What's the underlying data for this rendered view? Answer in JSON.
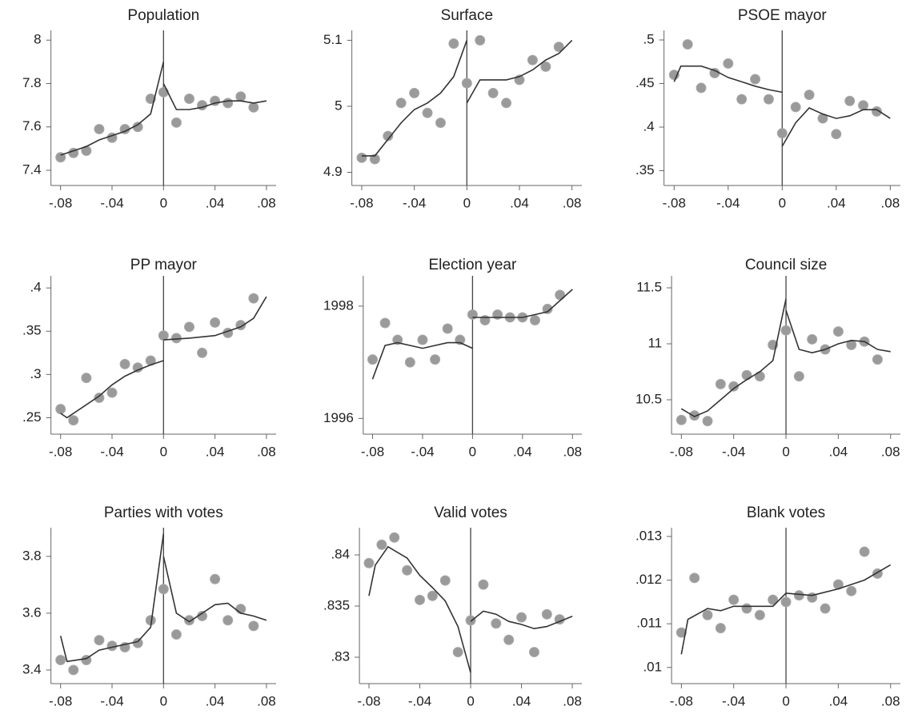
{
  "chart_data": [
    {
      "type": "scatter",
      "title": "Population",
      "points": {
        "color": "#9a9a9a",
        "x": [
          -0.08,
          -0.07,
          -0.06,
          -0.05,
          -0.04,
          -0.03,
          -0.02,
          -0.01,
          0,
          0.01,
          0.02,
          0.03,
          0.04,
          0.05,
          0.06,
          0.07
        ],
        "values": [
          7.46,
          7.48,
          7.49,
          7.59,
          7.55,
          7.59,
          7.6,
          7.73,
          7.76,
          7.62,
          7.73,
          7.7,
          7.72,
          7.71,
          7.74,
          7.69
        ]
      },
      "line": {
        "color": "#333333",
        "x": [
          -0.08,
          -0.07,
          -0.06,
          -0.05,
          -0.04,
          -0.03,
          -0.02,
          -0.01,
          0,
          null,
          0,
          0.01,
          0.02,
          0.03,
          0.04,
          0.05,
          0.06,
          0.07,
          0.08
        ],
        "values": [
          7.47,
          7.49,
          7.51,
          7.54,
          7.56,
          7.58,
          7.61,
          7.66,
          7.9,
          null,
          7.8,
          7.68,
          7.68,
          7.69,
          7.71,
          7.72,
          7.72,
          7.71,
          7.72
        ]
      },
      "xlim": [
        -0.0875,
        0.0875
      ],
      "xticks": [
        {
          "value": -0.08,
          "label": "-.08"
        },
        {
          "value": -0.04,
          "label": "-.04"
        },
        0,
        {
          "value": 0.04,
          "label": ".04"
        },
        {
          "value": 0.08,
          "label": ".08"
        }
      ],
      "ylim": [
        7.33,
        8.045
      ],
      "yticks": [
        7.4,
        7.6,
        7.8,
        8
      ]
    },
    {
      "type": "scatter",
      "title": "Surface",
      "points": {
        "color": "#9a9a9a",
        "x": [
          -0.08,
          -0.07,
          -0.06,
          -0.05,
          -0.04,
          -0.03,
          -0.02,
          -0.01,
          0,
          0.01,
          0.02,
          0.03,
          0.04,
          0.05,
          0.06,
          0.07
        ],
        "values": [
          4.922,
          4.92,
          4.955,
          5.005,
          5.02,
          4.99,
          4.975,
          5.095,
          5.035,
          5.1,
          5.02,
          5.005,
          5.04,
          5.07,
          5.06,
          5.09
        ]
      },
      "line": {
        "color": "#333333",
        "x": [
          -0.08,
          -0.07,
          -0.06,
          -0.05,
          -0.04,
          -0.03,
          -0.02,
          -0.01,
          0,
          null,
          0,
          0.01,
          0.02,
          0.03,
          0.04,
          0.05,
          0.06,
          0.07,
          0.08
        ],
        "values": [
          4.925,
          4.925,
          4.95,
          4.975,
          4.995,
          5.005,
          5.02,
          5.045,
          5.1,
          null,
          5.005,
          5.04,
          5.04,
          5.04,
          5.045,
          5.055,
          5.07,
          5.08,
          5.1
        ]
      },
      "xlim": [
        -0.0875,
        0.0875
      ],
      "xticks": [
        {
          "value": -0.08,
          "label": "-.08"
        },
        {
          "value": -0.04,
          "label": "-.04"
        },
        0,
        {
          "value": 0.04,
          "label": ".04"
        },
        {
          "value": 0.08,
          "label": ".08"
        }
      ],
      "ylim": [
        4.88,
        5.115
      ],
      "yticks": [
        4.9,
        5,
        5.1
      ]
    },
    {
      "type": "scatter",
      "title": "PSOE mayor",
      "points": {
        "color": "#9a9a9a",
        "x": [
          -0.08,
          -0.07,
          -0.06,
          -0.05,
          -0.04,
          -0.03,
          -0.02,
          -0.01,
          0,
          0.01,
          0.02,
          0.03,
          0.04,
          0.05,
          0.06,
          0.07
        ],
        "values": [
          0.46,
          0.495,
          0.445,
          0.462,
          0.473,
          0.432,
          0.455,
          0.432,
          0.393,
          0.423,
          0.437,
          0.41,
          0.392,
          0.43,
          0.425,
          0.418
        ]
      },
      "line": {
        "color": "#333333",
        "x": [
          -0.08,
          -0.075,
          -0.06,
          -0.05,
          -0.04,
          -0.03,
          -0.02,
          -0.01,
          0,
          null,
          0,
          0.01,
          0.02,
          0.03,
          0.04,
          0.05,
          0.06,
          0.07,
          0.08
        ],
        "values": [
          0.452,
          0.47,
          0.47,
          0.465,
          0.457,
          0.452,
          0.447,
          0.443,
          0.44,
          null,
          0.378,
          0.405,
          0.422,
          0.415,
          0.41,
          0.413,
          0.42,
          0.42,
          0.41
        ]
      },
      "xlim": [
        -0.0875,
        0.0875
      ],
      "xticks": [
        {
          "value": -0.08,
          "label": "-.08"
        },
        {
          "value": -0.04,
          "label": "-.04"
        },
        0,
        {
          "value": 0.04,
          "label": ".04"
        },
        {
          "value": 0.08,
          "label": ".08"
        }
      ],
      "ylim": [
        0.333,
        0.511
      ],
      "yticks": [
        {
          "value": 0.35,
          "label": ".35"
        },
        {
          "value": 0.4,
          "label": ".4"
        },
        {
          "value": 0.45,
          "label": ".45"
        },
        {
          "value": 0.5,
          "label": ".5"
        }
      ]
    },
    {
      "type": "scatter",
      "title": "PP mayor",
      "points": {
        "color": "#9a9a9a",
        "x": [
          -0.08,
          -0.07,
          -0.06,
          -0.05,
          -0.04,
          -0.03,
          -0.02,
          -0.01,
          0,
          0.01,
          0.02,
          0.03,
          0.04,
          0.05,
          0.06,
          0.07
        ],
        "values": [
          0.26,
          0.247,
          0.296,
          0.273,
          0.279,
          0.312,
          0.308,
          0.316,
          0.345,
          0.342,
          0.355,
          0.325,
          0.36,
          0.348,
          0.357,
          0.388
        ]
      },
      "line": {
        "color": "#333333",
        "x": [
          -0.08,
          -0.075,
          -0.06,
          -0.05,
          -0.04,
          -0.03,
          -0.02,
          -0.01,
          0,
          null,
          0,
          0.02,
          0.04,
          0.06,
          0.07,
          0.08
        ],
        "values": [
          0.255,
          0.25,
          0.265,
          0.275,
          0.288,
          0.298,
          0.305,
          0.311,
          0.316,
          null,
          0.34,
          0.342,
          0.345,
          0.355,
          0.365,
          0.39
        ]
      },
      "xlim": [
        -0.0875,
        0.0875
      ],
      "xticks": [
        {
          "value": -0.08,
          "label": "-.08"
        },
        {
          "value": -0.04,
          "label": "-.04"
        },
        0,
        {
          "value": 0.04,
          "label": ".04"
        },
        {
          "value": 0.08,
          "label": ".08"
        }
      ],
      "ylim": [
        0.231,
        0.414
      ],
      "yticks": [
        {
          "value": 0.25,
          "label": ".25"
        },
        {
          "value": 0.3,
          "label": ".3"
        },
        {
          "value": 0.35,
          "label": ".35"
        },
        {
          "value": 0.4,
          "label": ".4"
        }
      ]
    },
    {
      "type": "scatter",
      "title": "Election year",
      "points": {
        "color": "#9a9a9a",
        "x": [
          -0.08,
          -0.07,
          -0.06,
          -0.05,
          -0.04,
          -0.03,
          -0.02,
          -0.01,
          0,
          0.01,
          0.02,
          0.03,
          0.04,
          0.05,
          0.06,
          0.07
        ],
        "values": [
          1997.05,
          1997.7,
          1997.4,
          1997.0,
          1997.4,
          1997.05,
          1997.6,
          1997.4,
          1997.85,
          1997.75,
          1997.85,
          1997.8,
          1997.8,
          1997.75,
          1997.95,
          1998.2
        ]
      },
      "line": {
        "color": "#333333",
        "x": [
          -0.08,
          -0.07,
          -0.06,
          -0.04,
          -0.02,
          -0.01,
          0,
          null,
          0,
          0.02,
          0.04,
          0.06,
          0.08
        ],
        "values": [
          1996.7,
          1997.3,
          1997.35,
          1997.25,
          1997.35,
          1997.35,
          1997.25,
          null,
          1997.8,
          1997.8,
          1997.8,
          1997.9,
          1998.3
        ]
      },
      "xlim": [
        -0.0875,
        0.0875
      ],
      "xticks": [
        {
          "value": -0.08,
          "label": "-.08"
        },
        {
          "value": -0.04,
          "label": "-.04"
        },
        0,
        {
          "value": 0.04,
          "label": ".04"
        },
        {
          "value": 0.08,
          "label": ".08"
        }
      ],
      "ylim": [
        1995.72,
        1998.54
      ],
      "yticks": [
        1996,
        1998
      ]
    },
    {
      "type": "scatter",
      "title": "Council size",
      "points": {
        "color": "#9a9a9a",
        "x": [
          -0.08,
          -0.07,
          -0.06,
          -0.05,
          -0.04,
          -0.03,
          -0.02,
          -0.01,
          0,
          0.01,
          0.02,
          0.03,
          0.04,
          0.05,
          0.06,
          0.07
        ],
        "values": [
          10.32,
          10.36,
          10.31,
          10.64,
          10.62,
          10.72,
          10.71,
          10.99,
          11.12,
          10.71,
          11.04,
          10.95,
          11.11,
          10.99,
          11.02,
          10.86
        ]
      },
      "line": {
        "color": "#333333",
        "x": [
          -0.08,
          -0.07,
          -0.06,
          -0.05,
          -0.04,
          -0.03,
          -0.02,
          -0.01,
          0,
          null,
          0,
          0.01,
          0.02,
          0.03,
          0.04,
          0.05,
          0.06,
          0.07,
          0.08
        ],
        "values": [
          10.42,
          10.35,
          10.4,
          10.5,
          10.6,
          10.68,
          10.75,
          10.85,
          11.4,
          null,
          11.3,
          10.95,
          10.92,
          10.95,
          11.0,
          11.03,
          11.02,
          10.95,
          10.93
        ]
      },
      "xlim": [
        -0.0875,
        0.0875
      ],
      "xticks": [
        {
          "value": -0.08,
          "label": "-.08"
        },
        {
          "value": -0.04,
          "label": "-.04"
        },
        0,
        {
          "value": 0.04,
          "label": ".04"
        },
        {
          "value": 0.08,
          "label": ".08"
        }
      ],
      "ylim": [
        10.193,
        11.607
      ],
      "yticks": [
        10.5,
        11,
        11.5
      ]
    },
    {
      "type": "scatter",
      "title": "Parties with votes",
      "points": {
        "color": "#9a9a9a",
        "x": [
          -0.08,
          -0.07,
          -0.06,
          -0.05,
          -0.04,
          -0.03,
          -0.02,
          -0.01,
          0,
          0.01,
          0.02,
          0.03,
          0.04,
          0.05,
          0.06,
          0.07
        ],
        "values": [
          3.435,
          3.4,
          3.435,
          3.505,
          3.485,
          3.48,
          3.495,
          3.575,
          3.685,
          3.525,
          3.575,
          3.59,
          3.72,
          3.575,
          3.615,
          3.555
        ]
      },
      "line": {
        "color": "#333333",
        "x": [
          -0.08,
          -0.075,
          -0.06,
          -0.05,
          -0.04,
          -0.03,
          -0.02,
          -0.01,
          0,
          null,
          0,
          0.01,
          0.02,
          0.03,
          0.04,
          0.05,
          0.06,
          0.07,
          0.08
        ],
        "values": [
          3.52,
          3.43,
          3.44,
          3.47,
          3.48,
          3.49,
          3.5,
          3.55,
          3.88,
          null,
          3.8,
          3.6,
          3.57,
          3.6,
          3.63,
          3.635,
          3.6,
          3.59,
          3.575
        ]
      },
      "xlim": [
        -0.0875,
        0.0875
      ],
      "xticks": [
        {
          "value": -0.08,
          "label": "-.08"
        },
        {
          "value": -0.04,
          "label": "-.04"
        },
        0,
        {
          "value": 0.04,
          "label": ".04"
        },
        {
          "value": 0.08,
          "label": ".08"
        }
      ],
      "ylim": [
        3.352,
        3.901
      ],
      "yticks": [
        3.4,
        3.6,
        3.8
      ]
    },
    {
      "type": "scatter",
      "title": "Valid votes",
      "points": {
        "color": "#9a9a9a",
        "x": [
          -0.08,
          -0.07,
          -0.06,
          -0.05,
          -0.04,
          -0.03,
          -0.02,
          -0.01,
          0,
          0.01,
          0.02,
          0.03,
          0.04,
          0.05,
          0.06,
          0.07
        ],
        "values": [
          0.8392,
          0.841,
          0.8417,
          0.8385,
          0.8356,
          0.836,
          0.8375,
          0.8305,
          0.8336,
          0.8371,
          0.8333,
          0.8317,
          0.8339,
          0.8305,
          0.8342,
          0.8337
        ]
      },
      "line": {
        "color": "#333333",
        "x": [
          -0.08,
          -0.075,
          -0.065,
          -0.05,
          -0.04,
          -0.03,
          -0.02,
          -0.01,
          0,
          null,
          0,
          0.01,
          0.02,
          0.03,
          0.04,
          0.05,
          0.06,
          0.07,
          0.08
        ],
        "values": [
          0.836,
          0.839,
          0.8408,
          0.8397,
          0.838,
          0.8368,
          0.8355,
          0.833,
          0.8285,
          null,
          0.8335,
          0.8345,
          0.8342,
          0.8335,
          0.8332,
          0.8328,
          0.833,
          0.8335,
          0.834
        ]
      },
      "xlim": [
        -0.0875,
        0.0875
      ],
      "xticks": [
        {
          "value": -0.08,
          "label": "-.08"
        },
        {
          "value": -0.04,
          "label": "-.04"
        },
        0,
        {
          "value": 0.04,
          "label": ".04"
        },
        {
          "value": 0.08,
          "label": ".08"
        }
      ],
      "ylim": [
        0.82742,
        0.84266
      ],
      "yticks": [
        {
          "value": 0.83,
          "label": ".83"
        },
        {
          "value": 0.835,
          "label": ".835"
        },
        {
          "value": 0.84,
          "label": ".84"
        }
      ]
    },
    {
      "type": "scatter",
      "title": "Blank votes",
      "points": {
        "color": "#9a9a9a",
        "x": [
          -0.08,
          -0.07,
          -0.06,
          -0.05,
          -0.04,
          -0.03,
          -0.02,
          -0.01,
          0,
          0.01,
          0.02,
          0.03,
          0.04,
          0.05,
          0.06,
          0.07
        ],
        "values": [
          0.0108,
          0.01205,
          0.0112,
          0.0109,
          0.01155,
          0.01135,
          0.0112,
          0.01155,
          0.0115,
          0.01165,
          0.0116,
          0.01135,
          0.0119,
          0.01175,
          0.01265,
          0.01215
        ]
      },
      "line": {
        "color": "#333333",
        "x": [
          -0.08,
          -0.075,
          -0.06,
          -0.05,
          -0.04,
          -0.03,
          -0.02,
          -0.01,
          0,
          null,
          0,
          0.02,
          0.04,
          0.06,
          0.08
        ],
        "values": [
          0.0103,
          0.0111,
          0.01135,
          0.0113,
          0.0114,
          0.0114,
          0.0114,
          0.0114,
          0.0117,
          null,
          0.0117,
          0.01165,
          0.0118,
          0.012,
          0.01235
        ]
      },
      "xlim": [
        -0.0875,
        0.0875
      ],
      "xticks": [
        {
          "value": -0.08,
          "label": "-.08"
        },
        {
          "value": -0.04,
          "label": "-.04"
        },
        0,
        {
          "value": 0.04,
          "label": ".04"
        },
        {
          "value": 0.08,
          "label": ".08"
        }
      ],
      "ylim": [
        0.00963,
        0.0132
      ],
      "yticks": [
        {
          "value": 0.01,
          "label": ".01"
        },
        {
          "value": 0.011,
          "label": ".011"
        },
        {
          "value": 0.012,
          "label": ".012"
        },
        {
          "value": 0.013,
          "label": ".013"
        }
      ]
    }
  ]
}
